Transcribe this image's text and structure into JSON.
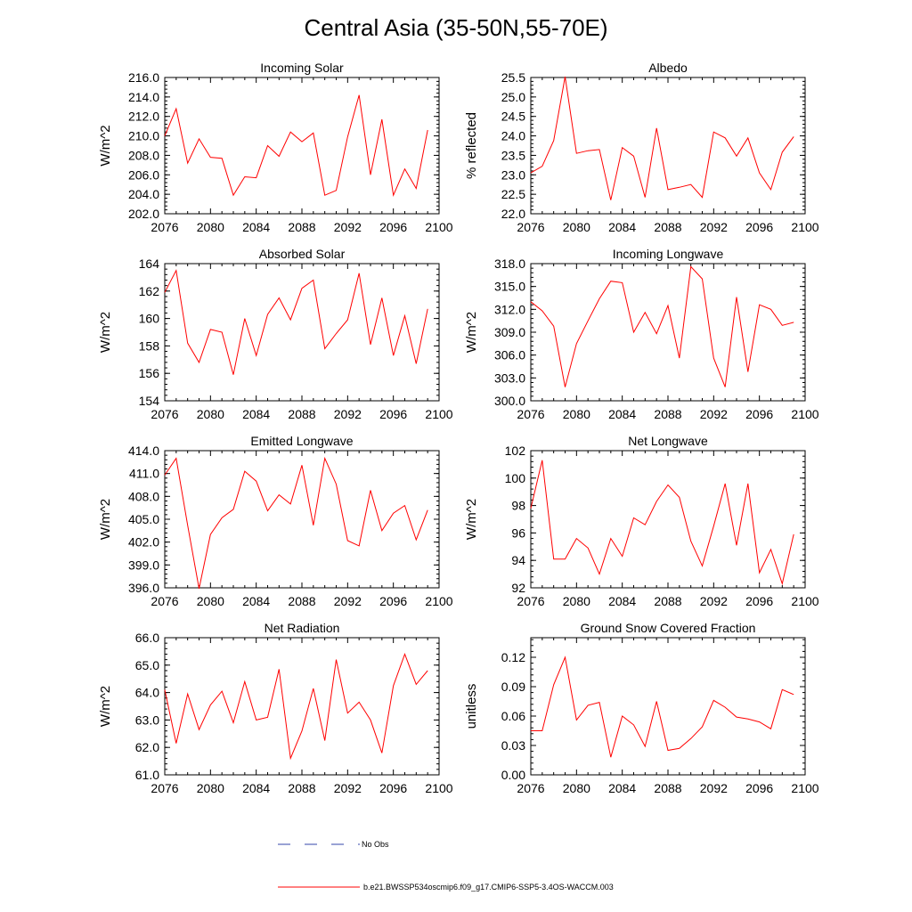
{
  "title": "Central Asia (35-50N,55-70E)",
  "legend": {
    "entries": [
      {
        "label": "No Obs",
        "color": "#3344aa",
        "dash": true
      },
      {
        "label": "b.e21.BWSSP534oscmip6.f09_g17.CMIP6-SSP5-3.4OS-WACCM.003",
        "color": "#ff0000",
        "dash": false
      }
    ]
  },
  "chart_data": [
    {
      "type": "line",
      "title": "Incoming Solar",
      "ylabel": "W/m^2",
      "xlim": [
        2076,
        2100
      ],
      "ylim": [
        202,
        216
      ],
      "xticks": [
        "2076",
        "2080",
        "2084",
        "2088",
        "2092",
        "2096",
        "2100"
      ],
      "yticks": [
        "202.0",
        "204.0",
        "206.0",
        "208.0",
        "210.0",
        "212.0",
        "214.0",
        "216.0"
      ],
      "color": "#ff0000",
      "x": [
        2076,
        2077,
        2078,
        2079,
        2080,
        2081,
        2082,
        2083,
        2084,
        2085,
        2086,
        2087,
        2088,
        2089,
        2090,
        2091,
        2092,
        2093,
        2094,
        2095,
        2096,
        2097,
        2098,
        2099
      ],
      "values": [
        210.0,
        212.8,
        207.2,
        209.7,
        207.8,
        207.7,
        203.9,
        205.8,
        205.7,
        209.0,
        207.9,
        210.4,
        209.4,
        210.3,
        203.9,
        204.4,
        209.9,
        214.2,
        206.0,
        211.7,
        203.9,
        206.6,
        204.6,
        210.6
      ]
    },
    {
      "type": "line",
      "title": "Albedo",
      "ylabel": "% reflected",
      "xlim": [
        2076,
        2100
      ],
      "ylim": [
        22,
        25.5
      ],
      "xticks": [
        "2076",
        "2080",
        "2084",
        "2088",
        "2092",
        "2096",
        "2100"
      ],
      "yticks": [
        "22.0",
        "22.5",
        "23.0",
        "23.5",
        "24.0",
        "24.5",
        "25.0",
        "25.5"
      ],
      "color": "#ff0000",
      "x": [
        2076,
        2077,
        2078,
        2079,
        2080,
        2081,
        2082,
        2083,
        2084,
        2085,
        2086,
        2087,
        2088,
        2089,
        2090,
        2091,
        2092,
        2093,
        2094,
        2095,
        2096,
        2097,
        2098,
        2099
      ],
      "values": [
        23.05,
        23.22,
        23.88,
        25.52,
        23.55,
        23.62,
        23.65,
        22.35,
        23.7,
        23.48,
        22.42,
        24.2,
        22.62,
        22.68,
        22.75,
        22.42,
        24.1,
        23.95,
        23.48,
        23.95,
        23.05,
        22.62,
        23.58,
        23.98
      ]
    },
    {
      "type": "line",
      "title": "Absorbed Solar",
      "ylabel": "W/m^2",
      "xlim": [
        2076,
        2100
      ],
      "ylim": [
        154,
        164
      ],
      "xticks": [
        "2076",
        "2080",
        "2084",
        "2088",
        "2092",
        "2096",
        "2100"
      ],
      "yticks": [
        "154",
        "156",
        "158",
        "160",
        "162",
        "164"
      ],
      "color": "#ff0000",
      "x": [
        2076,
        2077,
        2078,
        2079,
        2080,
        2081,
        2082,
        2083,
        2084,
        2085,
        2086,
        2087,
        2088,
        2089,
        2090,
        2091,
        2092,
        2093,
        2094,
        2095,
        2096,
        2097,
        2098,
        2099
      ],
      "values": [
        161.9,
        163.5,
        158.2,
        156.8,
        159.2,
        159.0,
        155.9,
        160.0,
        157.3,
        160.3,
        161.5,
        159.9,
        162.2,
        162.8,
        157.8,
        158.9,
        159.9,
        163.3,
        158.1,
        161.5,
        157.3,
        160.2,
        156.7,
        160.7
      ]
    },
    {
      "type": "line",
      "title": "Incoming Longwave",
      "ylabel": "W/m^2",
      "xlim": [
        2076,
        2100
      ],
      "ylim": [
        300,
        318
      ],
      "xticks": [
        "2076",
        "2080",
        "2084",
        "2088",
        "2092",
        "2096",
        "2100"
      ],
      "yticks": [
        "300.0",
        "303.0",
        "306.0",
        "309.0",
        "312.0",
        "315.0",
        "318.0"
      ],
      "color": "#ff0000",
      "x": [
        2076,
        2077,
        2078,
        2079,
        2080,
        2081,
        2082,
        2083,
        2084,
        2085,
        2086,
        2087,
        2088,
        2089,
        2090,
        2091,
        2092,
        2093,
        2094,
        2095,
        2096,
        2097,
        2098,
        2099
      ],
      "values": [
        313.0,
        311.8,
        309.8,
        301.8,
        307.5,
        310.5,
        313.4,
        315.7,
        315.5,
        309.0,
        311.6,
        308.8,
        312.5,
        305.6,
        317.6,
        316.0,
        305.6,
        301.8,
        313.6,
        303.8,
        312.6,
        312.0,
        309.9,
        310.3
      ]
    },
    {
      "type": "line",
      "title": "Emitted Longwave",
      "ylabel": "W/m^2",
      "xlim": [
        2076,
        2100
      ],
      "ylim": [
        396,
        414
      ],
      "xticks": [
        "2076",
        "2080",
        "2084",
        "2088",
        "2092",
        "2096",
        "2100"
      ],
      "yticks": [
        "396.0",
        "399.0",
        "402.0",
        "405.0",
        "408.0",
        "411.0",
        "414.0"
      ],
      "color": "#ff0000",
      "x": [
        2076,
        2077,
        2078,
        2079,
        2080,
        2081,
        2082,
        2083,
        2084,
        2085,
        2086,
        2087,
        2088,
        2089,
        2090,
        2091,
        2092,
        2093,
        2094,
        2095,
        2096,
        2097,
        2098,
        2099
      ],
      "values": [
        410.8,
        413.0,
        404.2,
        395.9,
        403.0,
        405.2,
        406.3,
        411.3,
        410.0,
        406.1,
        408.2,
        407.0,
        412.1,
        404.2,
        413.0,
        409.6,
        402.2,
        401.5,
        408.8,
        403.5,
        405.8,
        406.8,
        402.3,
        406.2
      ]
    },
    {
      "type": "line",
      "title": "Net Longwave",
      "ylabel": "W/m^2",
      "xlim": [
        2076,
        2100
      ],
      "ylim": [
        92,
        102
      ],
      "xticks": [
        "2076",
        "2080",
        "2084",
        "2088",
        "2092",
        "2096",
        "2100"
      ],
      "yticks": [
        "92",
        "94",
        "96",
        "98",
        "100",
        "102"
      ],
      "color": "#ff0000",
      "x": [
        2076,
        2077,
        2078,
        2079,
        2080,
        2081,
        2082,
        2083,
        2084,
        2085,
        2086,
        2087,
        2088,
        2089,
        2090,
        2091,
        2092,
        2093,
        2094,
        2095,
        2096,
        2097,
        2098,
        2099
      ],
      "values": [
        97.8,
        101.3,
        94.1,
        94.1,
        95.6,
        94.9,
        93.0,
        95.6,
        94.3,
        97.1,
        96.6,
        98.3,
        99.5,
        98.6,
        95.4,
        93.6,
        96.5,
        99.6,
        95.1,
        99.6,
        93.1,
        94.8,
        92.3,
        95.9
      ]
    },
    {
      "type": "line",
      "title": "Net Radiation",
      "ylabel": "W/m^2",
      "xlim": [
        2076,
        2100
      ],
      "ylim": [
        61,
        66
      ],
      "xticks": [
        "2076",
        "2080",
        "2084",
        "2088",
        "2092",
        "2096",
        "2100"
      ],
      "yticks": [
        "61.0",
        "62.0",
        "63.0",
        "64.0",
        "65.0",
        "66.0"
      ],
      "color": "#ff0000",
      "x": [
        2076,
        2077,
        2078,
        2079,
        2080,
        2081,
        2082,
        2083,
        2084,
        2085,
        2086,
        2087,
        2088,
        2089,
        2090,
        2091,
        2092,
        2093,
        2094,
        2095,
        2096,
        2097,
        2098,
        2099
      ],
      "values": [
        64.1,
        62.15,
        63.95,
        62.65,
        63.55,
        64.05,
        62.9,
        64.4,
        63.0,
        63.1,
        64.85,
        61.6,
        62.6,
        64.15,
        62.25,
        65.2,
        63.25,
        63.65,
        63.0,
        61.8,
        64.25,
        65.4,
        64.3,
        64.8
      ]
    },
    {
      "type": "line",
      "title": "Ground Snow Covered Fraction",
      "ylabel": "unitless",
      "xlim": [
        2076,
        2100
      ],
      "ylim": [
        0,
        0.14
      ],
      "xticks": [
        "2076",
        "2080",
        "2084",
        "2088",
        "2092",
        "2096",
        "2100"
      ],
      "yticks": [
        "0.00",
        "0.03",
        "0.06",
        "0.09",
        "0.12"
      ],
      "color": "#ff0000",
      "x": [
        2076,
        2077,
        2078,
        2079,
        2080,
        2081,
        2082,
        2083,
        2084,
        2085,
        2086,
        2087,
        2088,
        2089,
        2090,
        2091,
        2092,
        2093,
        2094,
        2095,
        2096,
        2097,
        2098,
        2099
      ],
      "values": [
        0.045,
        0.045,
        0.092,
        0.12,
        0.056,
        0.071,
        0.074,
        0.018,
        0.06,
        0.051,
        0.029,
        0.075,
        0.025,
        0.027,
        0.037,
        0.049,
        0.076,
        0.069,
        0.059,
        0.057,
        0.054,
        0.047,
        0.087,
        0.082
      ]
    }
  ]
}
